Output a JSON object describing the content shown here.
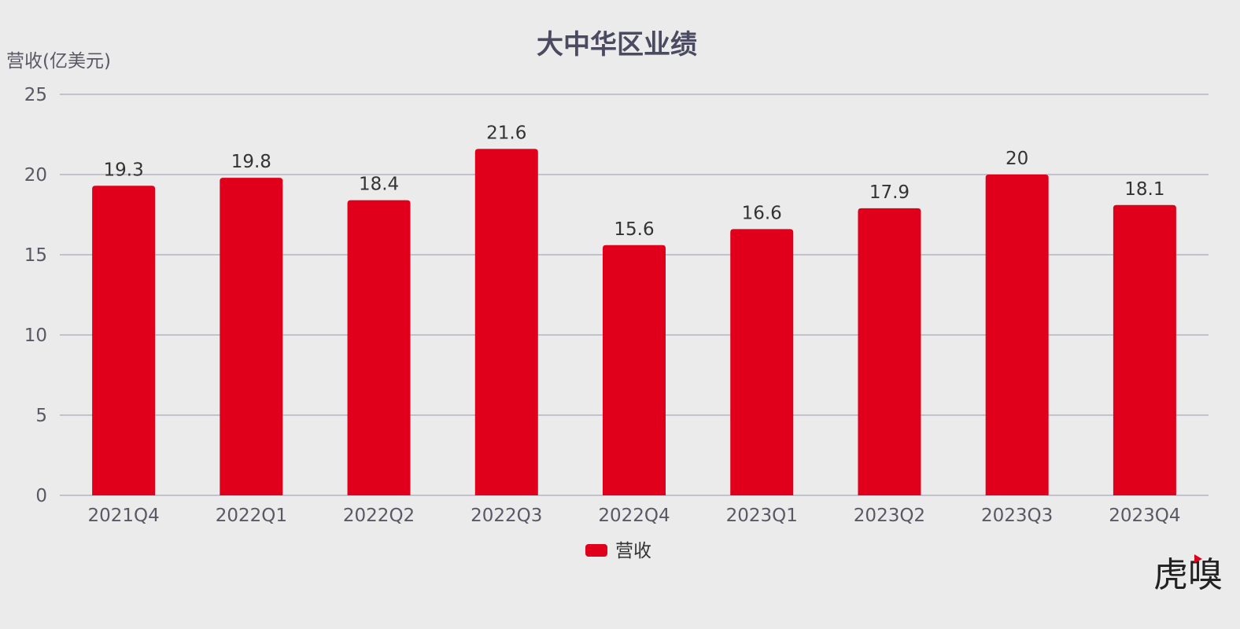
{
  "chart_data": {
    "type": "bar",
    "title": "大中华区业绩",
    "ylabel": "营收(亿美元)",
    "xlabel": "",
    "categories": [
      "2021Q4",
      "2022Q1",
      "2022Q2",
      "2022Q3",
      "2022Q4",
      "2023Q1",
      "2023Q2",
      "2023Q3",
      "2023Q4"
    ],
    "series": [
      {
        "name": "营收",
        "values": [
          19.3,
          19.8,
          18.4,
          21.6,
          15.6,
          16.6,
          17.9,
          20,
          18.1
        ],
        "color": "#e0001b"
      }
    ],
    "ylim": [
      0,
      25
    ],
    "yticks": [
      0,
      5,
      10,
      15,
      20,
      25
    ],
    "grid": true,
    "legend_position": "bottom-center",
    "data_labels": true
  },
  "watermark": {
    "text": "虎嗅",
    "accent_color": "#e0001b"
  },
  "colors": {
    "background": "#ebebeb",
    "gridline": "#a9a9ba",
    "bar": "#e0001b"
  }
}
